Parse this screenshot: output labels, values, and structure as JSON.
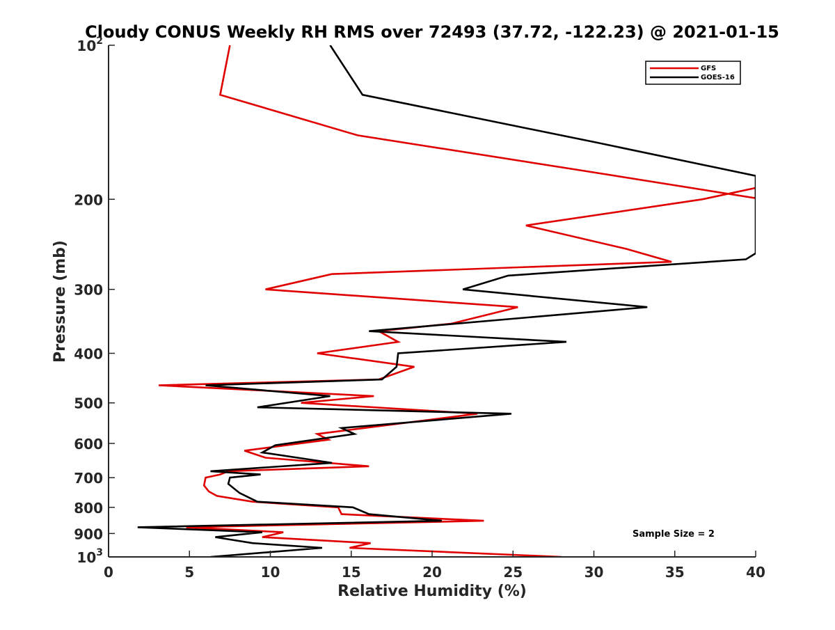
{
  "chart_data": {
    "type": "line",
    "title": "Cloudy CONUS Weekly RH RMS over 72493 (37.72, -122.23) @ 2021-01-15",
    "xlabel": "Relative Humidity (%)",
    "ylabel": "Pressure (mb)",
    "xlim": [
      0,
      40
    ],
    "ylim": [
      100,
      1000
    ],
    "y_scale": "log",
    "y_reversed": true,
    "grid": false,
    "legend_position": "top-right",
    "x_ticks": [
      "0",
      "5",
      "10",
      "15",
      "20",
      "25",
      "30",
      "35",
      "40"
    ],
    "x_tick_values": [
      0,
      5,
      10,
      15,
      20,
      25,
      30,
      35,
      40
    ],
    "y_ticks": [
      {
        "value": 100,
        "base": "10",
        "exp": "2"
      },
      {
        "value": 200,
        "label": "200"
      },
      {
        "value": 300,
        "label": "300"
      },
      {
        "value": 400,
        "label": "400"
      },
      {
        "value": 500,
        "label": "500"
      },
      {
        "value": 600,
        "label": "600"
      },
      {
        "value": 700,
        "label": "700"
      },
      {
        "value": 800,
        "label": "800"
      },
      {
        "value": 900,
        "label": "900"
      },
      {
        "value": 1000,
        "base": "10",
        "exp": "3"
      }
    ],
    "annotation": "Sample Size = 2",
    "series": [
      {
        "name": "GFS",
        "color": "#e00000",
        "points": [
          [
            7.5,
            100
          ],
          [
            6.9,
            125
          ],
          [
            15.4,
            150
          ],
          [
            28.9,
            175
          ],
          [
            40,
            199
          ],
          [
            40,
            190
          ],
          [
            36.7,
            200
          ],
          [
            25.8,
            225
          ],
          [
            32,
            250
          ],
          [
            34.8,
            265
          ],
          [
            13.8,
            280
          ],
          [
            9.7,
            300
          ],
          [
            25.3,
            325
          ],
          [
            21.2,
            350
          ],
          [
            16.7,
            362
          ],
          [
            17.9,
            380
          ],
          [
            12.9,
            400
          ],
          [
            18.9,
            425
          ],
          [
            16.7,
            450
          ],
          [
            3.1,
            462
          ],
          [
            16.4,
            485
          ],
          [
            11.9,
            500
          ],
          [
            22.8,
            525
          ],
          [
            12.9,
            575
          ],
          [
            13.6,
            590
          ],
          [
            8.4,
            620
          ],
          [
            9.7,
            640
          ],
          [
            16.1,
            665
          ],
          [
            7.4,
            680
          ],
          [
            6.9,
            690
          ],
          [
            6.0,
            700
          ],
          [
            5.9,
            725
          ],
          [
            6.2,
            745
          ],
          [
            6.7,
            760
          ],
          [
            8.9,
            780
          ],
          [
            14.2,
            800
          ],
          [
            14.4,
            825
          ],
          [
            23.2,
            850
          ],
          [
            4.8,
            875
          ],
          [
            10.8,
            895
          ],
          [
            9.5,
            915
          ],
          [
            16.2,
            940
          ],
          [
            14.9,
            960
          ],
          [
            28.0,
            1000
          ]
        ]
      },
      {
        "name": "GOES-16",
        "color": "#000000",
        "points": [
          [
            13.7,
            100
          ],
          [
            15.7,
            125
          ],
          [
            30.2,
            155
          ],
          [
            40,
            180
          ],
          [
            40,
            255
          ],
          [
            39.4,
            262
          ],
          [
            24.7,
            282
          ],
          [
            21.9,
            300
          ],
          [
            33.3,
            325
          ],
          [
            16.1,
            362
          ],
          [
            28.3,
            380
          ],
          [
            17.9,
            400
          ],
          [
            17.8,
            425
          ],
          [
            16.9,
            450
          ],
          [
            6.0,
            462
          ],
          [
            13.7,
            485
          ],
          [
            9.2,
            510
          ],
          [
            24.9,
            525
          ],
          [
            14.4,
            560
          ],
          [
            15.2,
            575
          ],
          [
            10.3,
            605
          ],
          [
            9.5,
            625
          ],
          [
            13.8,
            655
          ],
          [
            6.3,
            680
          ],
          [
            9.4,
            690
          ],
          [
            7.5,
            700
          ],
          [
            7.4,
            720
          ],
          [
            8.1,
            750
          ],
          [
            9.2,
            780
          ],
          [
            15.1,
            800
          ],
          [
            16.1,
            825
          ],
          [
            20.6,
            850
          ],
          [
            1.8,
            875
          ],
          [
            9.5,
            895
          ],
          [
            6.6,
            915
          ],
          [
            8.9,
            940
          ],
          [
            13.2,
            960
          ],
          [
            6.3,
            1000
          ]
        ]
      }
    ]
  }
}
